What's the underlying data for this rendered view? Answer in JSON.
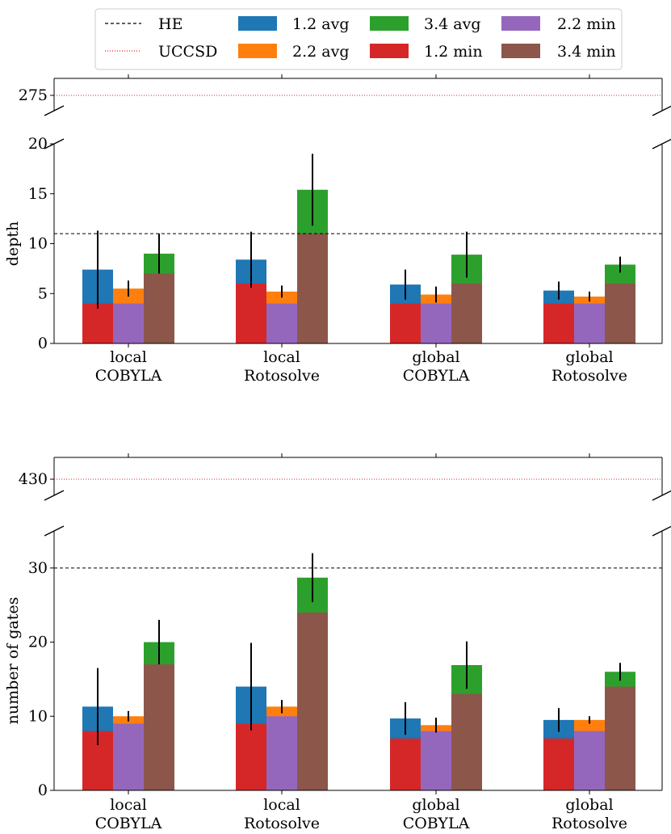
{
  "colors": {
    "c12": "#1f77b4",
    "c22": "#ff7f0e",
    "c34": "#2ca02c",
    "m12": "#d62728",
    "m22": "#9467bd",
    "m34": "#8c564b",
    "he": "#000000",
    "uccsd": "#d62728"
  },
  "legend": {
    "he": "HE",
    "uccsd": "UCCSD",
    "avg12": "1.2 avg",
    "avg22": "2.2 avg",
    "avg34": "3.4 avg",
    "min12": "1.2 min",
    "min22": "2.2 min",
    "min34": "3.4 min"
  },
  "chart_data": [
    {
      "type": "bar",
      "ylabel": "depth",
      "categories": [
        [
          "local",
          "COBYLA"
        ],
        [
          "local",
          "Rotosolve"
        ],
        [
          "global",
          "COBYLA"
        ],
        [
          "global",
          "Rotosolve"
        ]
      ],
      "ylim": [
        0,
        20
      ],
      "yticks": [
        0,
        5,
        10,
        15,
        20
      ],
      "broken_axis_top_tick": 275,
      "he_line": 11,
      "uccsd_line": 275,
      "series": [
        {
          "name": "1.2 avg",
          "values": [
            7.4,
            8.4,
            5.9,
            5.3
          ],
          "err": [
            3.9,
            2.8,
            1.5,
            0.9
          ]
        },
        {
          "name": "2.2 avg",
          "values": [
            5.5,
            5.2,
            4.9,
            4.7
          ],
          "err": [
            0.8,
            0.6,
            0.8,
            0.5
          ]
        },
        {
          "name": "3.4 avg",
          "values": [
            9.0,
            15.4,
            8.9,
            7.9
          ],
          "err": [
            2.0,
            3.6,
            2.3,
            0.8
          ]
        },
        {
          "name": "1.2 min",
          "values": [
            4,
            6,
            4,
            4
          ]
        },
        {
          "name": "2.2 min",
          "values": [
            4,
            4,
            4,
            4
          ]
        },
        {
          "name": "3.4 min",
          "values": [
            7,
            11,
            6,
            6
          ]
        }
      ]
    },
    {
      "type": "bar",
      "ylabel": "number of gates",
      "categories": [
        [
          "local",
          "COBYLA"
        ],
        [
          "local",
          "Rotosolve"
        ],
        [
          "global",
          "COBYLA"
        ],
        [
          "global",
          "Rotosolve"
        ]
      ],
      "ylim": [
        0,
        35
      ],
      "yticks": [
        0,
        10,
        20,
        30
      ],
      "broken_axis_top_tick": 430,
      "he_line": 30,
      "uccsd_line": 430,
      "series": [
        {
          "name": "1.2 avg",
          "values": [
            11.3,
            14.0,
            9.7,
            9.5
          ],
          "err": [
            5.2,
            5.9,
            2.2,
            1.6
          ]
        },
        {
          "name": "2.2 avg",
          "values": [
            10.0,
            11.3,
            8.8,
            9.5
          ],
          "err": [
            0.7,
            0.9,
            1.0,
            0.5
          ]
        },
        {
          "name": "3.4 avg",
          "values": [
            20.0,
            28.7,
            16.9,
            16.0
          ],
          "err": [
            3.0,
            3.3,
            3.2,
            1.2
          ]
        },
        {
          "name": "1.2 min",
          "values": [
            8,
            9,
            7,
            7
          ]
        },
        {
          "name": "2.2 min",
          "values": [
            9,
            10,
            8,
            8
          ]
        },
        {
          "name": "3.4 min",
          "values": [
            17,
            24,
            13,
            14
          ]
        }
      ]
    }
  ]
}
